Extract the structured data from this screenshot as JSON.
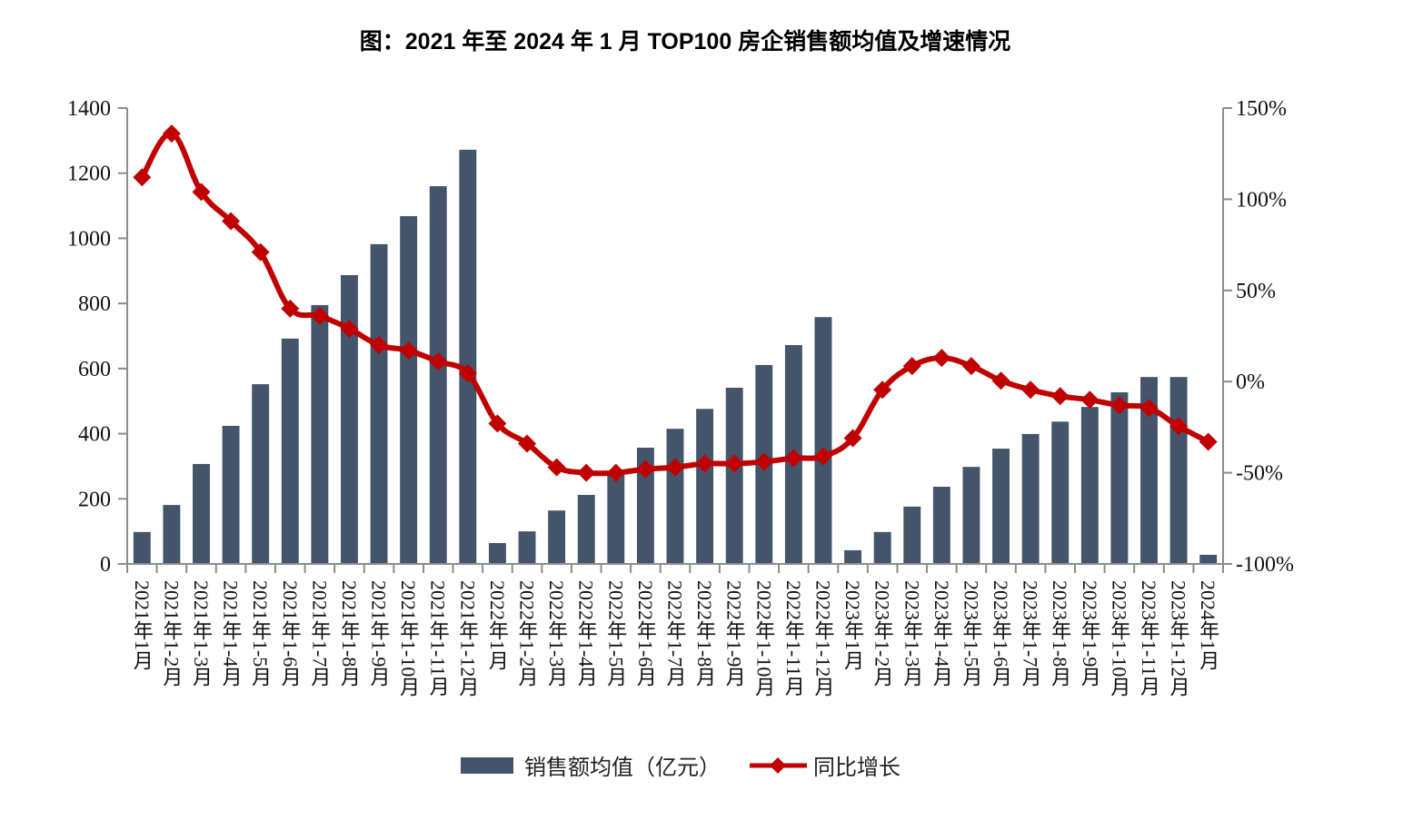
{
  "chart_data": {
    "type": "bar+line",
    "title": "图：2021 年至 2024 年 1 月 TOP100 房企销售额均值及增速情况",
    "xlabel": "",
    "ylabel": "",
    "y2label": "",
    "categories": [
      "2021年1月",
      "2021年1-2月",
      "2021年1-3月",
      "2021年1-4月",
      "2021年1-5月",
      "2021年1-6月",
      "2021年1-7月",
      "2021年1-8月",
      "2021年1-9月",
      "2021年1-10月",
      "2021年1-11月",
      "2021年1-12月",
      "2022年1月",
      "2022年1-2月",
      "2022年1-3月",
      "2022年1-4月",
      "2022年1-5月",
      "2022年1-6月",
      "2022年1-7月",
      "2022年1-8月",
      "2022年1-9月",
      "2022年1-10月",
      "2022年1-11月",
      "2022年1-12月",
      "2023年1月",
      "2023年1-2月",
      "2023年1-3月",
      "2023年1-4月",
      "2023年1-5月",
      "2023年1-6月",
      "2023年1-7月",
      "2023年1-8月",
      "2023年1-9月",
      "2023年1-10月",
      "2023年1-11月",
      "2023年1-12月",
      "2024年1月"
    ],
    "series": [
      {
        "name": "销售额均值（亿元）",
        "type": "bar",
        "axis": "left",
        "color": "#44546A",
        "values": [
          98,
          181,
          307,
          424,
          552,
          692,
          795,
          887,
          982,
          1068,
          1160,
          1272,
          64,
          100,
          164,
          212,
          276,
          357,
          415,
          476,
          541,
          611,
          672,
          758,
          42,
          98,
          176,
          237,
          298,
          354,
          399,
          437,
          482,
          527,
          574,
          574,
          28
        ]
      },
      {
        "name": "同比增长",
        "type": "line",
        "axis": "right",
        "color": "#C00000",
        "marker": "diamond",
        "values": [
          112,
          136,
          104,
          88,
          71,
          40,
          36,
          29,
          20,
          17,
          11,
          4.5,
          -23,
          -34,
          -47,
          -50,
          -50,
          -48,
          -47,
          -45,
          -45,
          -44,
          -42,
          -41,
          -31,
          -4.5,
          8.5,
          13,
          8.5,
          0.5,
          -4.5,
          -8,
          -10,
          -13,
          -14.5,
          -24.5,
          -33
        ]
      }
    ],
    "y_axis_left": {
      "min": 0,
      "max": 1400,
      "ticks": [
        0,
        200,
        400,
        600,
        800,
        1000,
        1200,
        1400
      ],
      "tick_labels": [
        "0",
        "200",
        "400",
        "600",
        "800",
        "1000",
        "1200",
        "1400"
      ]
    },
    "y_axis_right": {
      "min": -100,
      "max": 150,
      "ticks": [
        -100,
        -50,
        0,
        50,
        100,
        150
      ],
      "tick_labels": [
        "-100%",
        "-50%",
        "0%",
        "50%",
        "100%",
        "150%"
      ],
      "unit": "%"
    },
    "grid": false,
    "legend": {
      "position": "bottom",
      "entries": [
        "销售额均值（亿元）",
        "同比增长"
      ]
    }
  }
}
